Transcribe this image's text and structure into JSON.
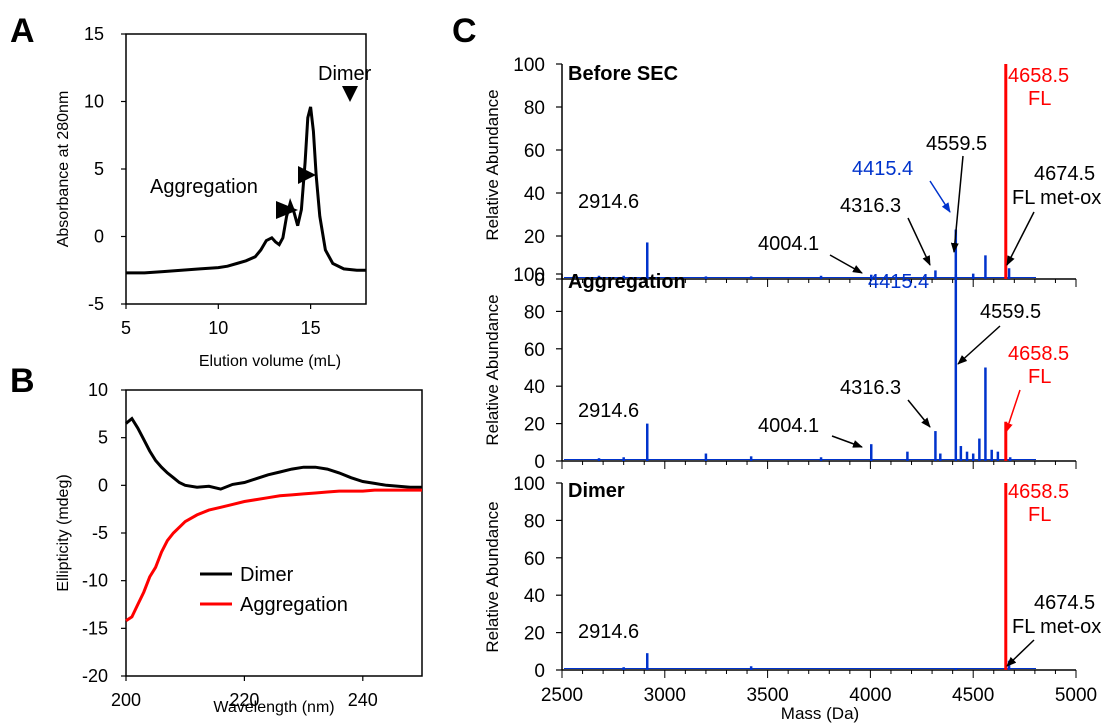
{
  "panel_labels": {
    "a": "A",
    "b": "B",
    "c": "C"
  },
  "chart_data": [
    {
      "id": "A",
      "type": "line",
      "xlabel": "Elution volume (mL)",
      "ylabel": "Absorbance at 280nm",
      "xlim": [
        5,
        18
      ],
      "ylim": [
        -5,
        15
      ],
      "xticks": [
        5,
        10,
        15
      ],
      "yticks": [
        15,
        10,
        5,
        0,
        -5
      ],
      "series": [
        {
          "color": "#000000",
          "x": [
            5,
            6,
            7,
            8,
            9,
            10,
            10.5,
            11,
            11.5,
            12,
            12.3,
            12.6,
            12.9,
            13.1,
            13.3,
            13.5,
            13.7,
            13.9,
            14.1,
            14.3,
            14.5,
            14.7,
            14.85,
            15.0,
            15.15,
            15.3,
            15.5,
            15.8,
            16.2,
            16.8,
            17.5,
            18
          ],
          "y": [
            -2.7,
            -2.7,
            -2.6,
            -2.5,
            -2.4,
            -2.3,
            -2.2,
            -2.0,
            -1.8,
            -1.5,
            -1.0,
            -0.3,
            -0.1,
            -0.4,
            -0.6,
            -0.1,
            1.5,
            2.5,
            1.8,
            0.8,
            2.0,
            5.5,
            8.8,
            9.6,
            7.8,
            4.5,
            1.5,
            -1.0,
            -2.0,
            -2.4,
            -2.5,
            -2.5
          ]
        }
      ],
      "annotations": [
        {
          "text": "Dimer",
          "x": 14.95,
          "y": 9.6
        },
        {
          "text": "Aggregation",
          "x": 12.6,
          "y": -0.1
        },
        {
          "text": "",
          "x": 13.7,
          "y": 2.5
        }
      ]
    },
    {
      "id": "B",
      "type": "line",
      "xlabel": "Wavelength (nm)",
      "ylabel": "Ellipticity (mdeg)",
      "xlim": [
        200,
        250
      ],
      "ylim": [
        -20,
        10
      ],
      "xticks": [
        200,
        220,
        240
      ],
      "yticks": [
        10,
        5,
        0,
        -5,
        -10,
        -15,
        -20
      ],
      "series": [
        {
          "name": "Dimer",
          "color": "#000000",
          "x": [
            200,
            201,
            202,
            203,
            204,
            205,
            206,
            207,
            208,
            209,
            210,
            212,
            214,
            216,
            218,
            220,
            222,
            224,
            226,
            228,
            230,
            232,
            234,
            236,
            238,
            240,
            242,
            244,
            246,
            248,
            250
          ],
          "y": [
            6.5,
            7.0,
            6.0,
            4.8,
            3.6,
            2.6,
            1.9,
            1.3,
            0.8,
            0.3,
            0.0,
            -0.2,
            -0.1,
            -0.4,
            0.1,
            0.3,
            0.7,
            1.1,
            1.4,
            1.7,
            1.9,
            1.9,
            1.7,
            1.3,
            0.8,
            0.4,
            0.2,
            0.0,
            -0.1,
            -0.2,
            -0.2
          ]
        },
        {
          "name": "Aggregation",
          "color": "#ff0000",
          "x": [
            200,
            201,
            202,
            203,
            204,
            205,
            206,
            207,
            208,
            209,
            210,
            212,
            214,
            216,
            218,
            220,
            222,
            224,
            226,
            228,
            230,
            232,
            234,
            236,
            238,
            240,
            242,
            244,
            246,
            248,
            250
          ],
          "y": [
            -14.2,
            -13.8,
            -12.5,
            -11.2,
            -9.6,
            -8.6,
            -7.0,
            -5.8,
            -5.0,
            -4.4,
            -3.8,
            -3.1,
            -2.6,
            -2.3,
            -2.0,
            -1.7,
            -1.5,
            -1.3,
            -1.1,
            -1.0,
            -0.9,
            -0.8,
            -0.7,
            -0.6,
            -0.6,
            -0.6,
            -0.5,
            -0.5,
            -0.5,
            -0.5,
            -0.5
          ]
        }
      ],
      "legend": "lower-right"
    },
    {
      "id": "C",
      "type": "bar",
      "xlabel": "Mass (Da)",
      "ylabel": "Relative Abundance",
      "xlim": [
        2500,
        5000
      ],
      "xticks": [
        2500,
        3000,
        3500,
        4000,
        4500,
        5000
      ],
      "ylim": [
        0,
        100
      ],
      "yticks": [
        0,
        20,
        40,
        60,
        80,
        100
      ],
      "panels": [
        {
          "title": "Before SEC",
          "peaks": [
            {
              "x": 2680,
              "y": 1.5,
              "color": "#0033cc"
            },
            {
              "x": 2800,
              "y": 1.5,
              "color": "#0033cc"
            },
            {
              "x": 2914.6,
              "y": 17,
              "color": "#0033cc"
            },
            {
              "x": 3200,
              "y": 1.2,
              "color": "#0033cc"
            },
            {
              "x": 3420,
              "y": 1.2,
              "color": "#0033cc"
            },
            {
              "x": 3760,
              "y": 1.5,
              "color": "#0033cc"
            },
            {
              "x": 4004.1,
              "y": 2,
              "color": "#0033cc"
            },
            {
              "x": 4316.3,
              "y": 4,
              "color": "#0033cc"
            },
            {
              "x": 4415.4,
              "y": 23,
              "color": "#0033cc"
            },
            {
              "x": 4500,
              "y": 2.5,
              "color": "#0033cc"
            },
            {
              "x": 4559.5,
              "y": 11,
              "color": "#0033cc"
            },
            {
              "x": 4658.5,
              "y": 100,
              "color": "#ff0000"
            },
            {
              "x": 4674.5,
              "y": 5,
              "color": "#0033cc"
            }
          ],
          "labels": [
            {
              "text": "2914.6",
              "color": "#000000"
            },
            {
              "text": "4004.1",
              "color": "#000000"
            },
            {
              "text": "4316.3",
              "color": "#000000"
            },
            {
              "text": "4415.4",
              "color": "#0033cc"
            },
            {
              "text": "4559.5",
              "color": "#000000"
            },
            {
              "text": "4658.5",
              "color": "#ff0000"
            },
            {
              "text": "FL",
              "color": "#ff0000"
            },
            {
              "text": "4674.5",
              "color": "#000000"
            },
            {
              "text": "FL met-ox",
              "color": "#000000"
            }
          ]
        },
        {
          "title": "Aggregation",
          "peaks": [
            {
              "x": 2680,
              "y": 1.5,
              "color": "#0033cc"
            },
            {
              "x": 2800,
              "y": 2,
              "color": "#0033cc"
            },
            {
              "x": 2914.6,
              "y": 20,
              "color": "#0033cc"
            },
            {
              "x": 3200,
              "y": 4,
              "color": "#0033cc"
            },
            {
              "x": 3420,
              "y": 2.5,
              "color": "#0033cc"
            },
            {
              "x": 3760,
              "y": 2,
              "color": "#0033cc"
            },
            {
              "x": 4004.1,
              "y": 9,
              "color": "#0033cc"
            },
            {
              "x": 4180,
              "y": 5,
              "color": "#0033cc"
            },
            {
              "x": 4316.3,
              "y": 16,
              "color": "#0033cc"
            },
            {
              "x": 4340,
              "y": 4,
              "color": "#0033cc"
            },
            {
              "x": 4415.4,
              "y": 100,
              "color": "#0033cc"
            },
            {
              "x": 4440,
              "y": 8,
              "color": "#0033cc"
            },
            {
              "x": 4470,
              "y": 5,
              "color": "#0033cc"
            },
            {
              "x": 4500,
              "y": 4,
              "color": "#0033cc"
            },
            {
              "x": 4530,
              "y": 12,
              "color": "#0033cc"
            },
            {
              "x": 4559.5,
              "y": 50,
              "color": "#0033cc"
            },
            {
              "x": 4590,
              "y": 6,
              "color": "#0033cc"
            },
            {
              "x": 4620,
              "y": 5,
              "color": "#0033cc"
            },
            {
              "x": 4658.5,
              "y": 21,
              "color": "#ff0000"
            },
            {
              "x": 4680,
              "y": 2,
              "color": "#0033cc"
            }
          ],
          "labels": [
            {
              "text": "2914.6",
              "color": "#000000"
            },
            {
              "text": "4004.1",
              "color": "#000000"
            },
            {
              "text": "4316.3",
              "color": "#000000"
            },
            {
              "text": "4415.4",
              "color": "#0033cc"
            },
            {
              "text": "4559.5",
              "color": "#000000"
            },
            {
              "text": "4658.5",
              "color": "#ff0000"
            },
            {
              "text": "FL",
              "color": "#ff0000"
            }
          ]
        },
        {
          "title": "Dimer",
          "peaks": [
            {
              "x": 2800,
              "y": 1.5,
              "color": "#0033cc"
            },
            {
              "x": 2914.6,
              "y": 9,
              "color": "#0033cc"
            },
            {
              "x": 3420,
              "y": 2,
              "color": "#0033cc"
            },
            {
              "x": 4415.4,
              "y": 1,
              "color": "#0033cc"
            },
            {
              "x": 4658.5,
              "y": 100,
              "color": "#ff0000"
            },
            {
              "x": 4674.5,
              "y": 5,
              "color": "#0033cc"
            }
          ],
          "labels": [
            {
              "text": "2914.6",
              "color": "#000000"
            },
            {
              "text": "4658.5",
              "color": "#ff0000"
            },
            {
              "text": "FL",
              "color": "#ff0000"
            },
            {
              "text": "4674.5",
              "color": "#000000"
            },
            {
              "text": "FL met-ox",
              "color": "#000000"
            }
          ]
        }
      ]
    }
  ]
}
